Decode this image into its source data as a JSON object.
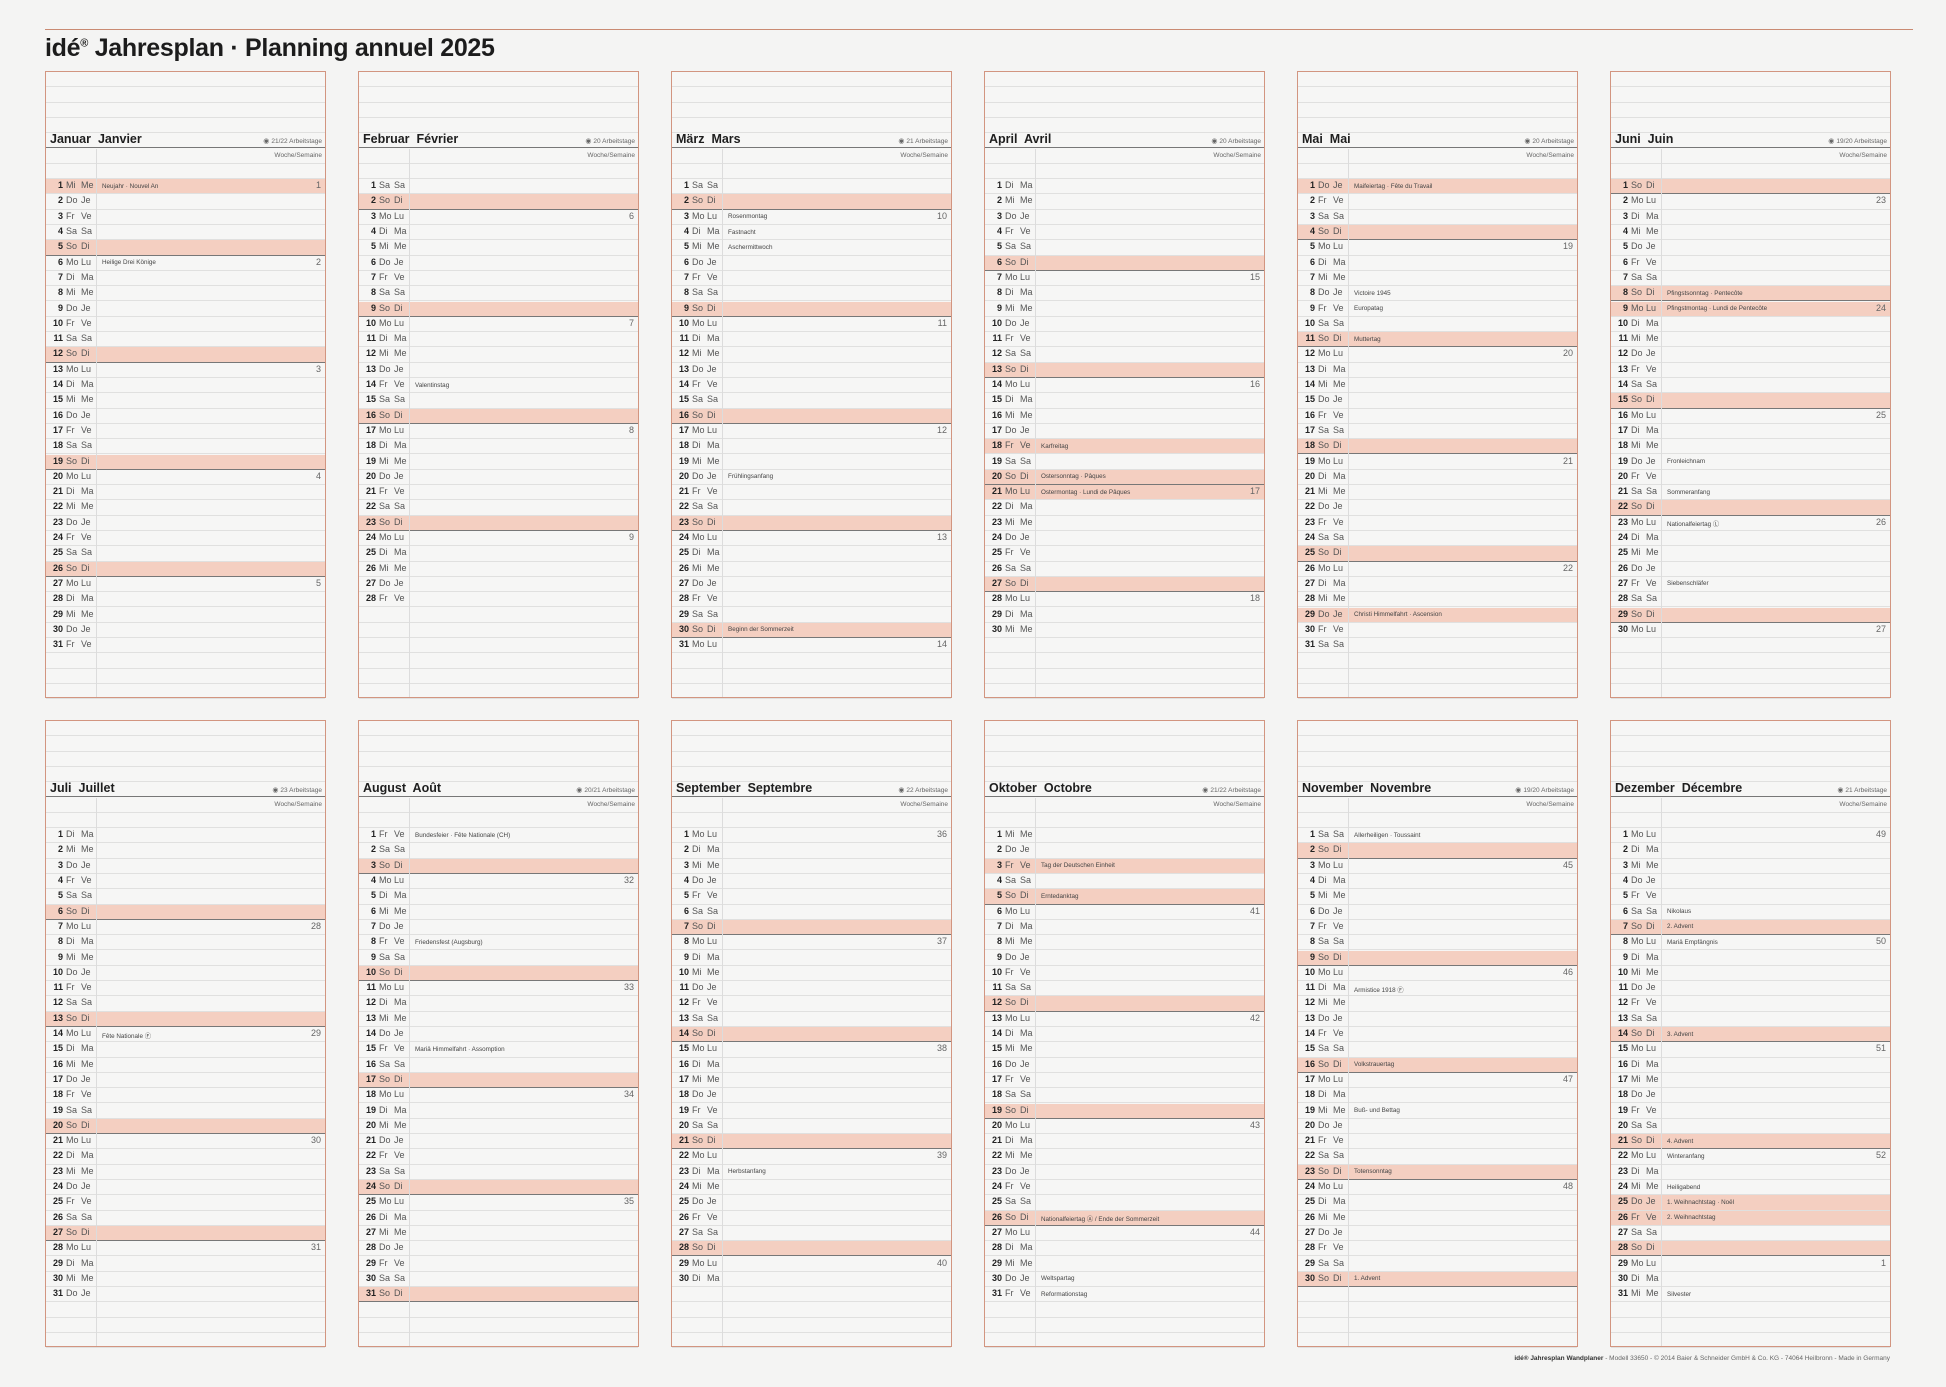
{
  "title": {
    "brand": "idé",
    "reg": "®",
    "text": " Jahresplan · Planning annuel 2025"
  },
  "week_label": "Woche/Semaine",
  "workdays_suffix": "Arbeitstage",
  "workdays_icon": "eye-icon",
  "weekdays_de": [
    "Mo",
    "Di",
    "Mi",
    "Do",
    "Fr",
    "Sa",
    "So"
  ],
  "weekdays_fr": [
    "Lu",
    "Ma",
    "Me",
    "Je",
    "Ve",
    "Sa",
    "Di"
  ],
  "colors": {
    "highlight": "#f4cfc1",
    "border": "#d29580",
    "background": "#f4f4f3"
  },
  "months": [
    {
      "de": "Januar",
      "fr": "Janvier",
      "workdays": "21/22",
      "first_weekday": 2,
      "days": 31,
      "weeks": {
        "1": 1,
        "6": 2,
        "13": 3,
        "20": 4,
        "27": 5
      },
      "events": {
        "1": "Neujahr · Nouvel An",
        "6": "Heilige Drei Könige"
      },
      "holidays": [
        1
      ]
    },
    {
      "de": "Februar",
      "fr": "Février",
      "workdays": "20",
      "first_weekday": 5,
      "days": 28,
      "weeks": {
        "3": 6,
        "10": 7,
        "17": 8,
        "24": 9
      },
      "events": {
        "14": "Valentinstag"
      },
      "holidays": []
    },
    {
      "de": "März",
      "fr": "Mars",
      "workdays": "21",
      "first_weekday": 5,
      "days": 31,
      "weeks": {
        "3": 10,
        "10": 11,
        "17": 12,
        "24": 13,
        "31": 14
      },
      "events": {
        "3": "Rosenmontag",
        "4": "Fastnacht",
        "5": "Aschermittwoch",
        "20": "Frühlingsanfang",
        "30": "Beginn der Sommerzeit"
      },
      "holidays": []
    },
    {
      "de": "April",
      "fr": "Avril",
      "workdays": "20",
      "first_weekday": 1,
      "days": 30,
      "weeks": {
        "7": 15,
        "14": 16,
        "21": 17,
        "28": 18
      },
      "events": {
        "18": "Karfreitag",
        "20": "Ostersonntag · Pâques",
        "21": "Ostermontag · Lundi de Pâques"
      },
      "holidays": [
        18,
        21
      ]
    },
    {
      "de": "Mai",
      "fr": "Mai",
      "workdays": "20",
      "first_weekday": 3,
      "days": 31,
      "weeks": {
        "5": 19,
        "12": 20,
        "19": 21,
        "26": 22
      },
      "events": {
        "1": "Maifeiertag · Fête du Travail",
        "8": "Victoire 1945",
        "9": "Europatag",
        "11": "Muttertag",
        "29": "Christi Himmelfahrt · Ascension"
      },
      "holidays": [
        1,
        29
      ]
    },
    {
      "de": "Juni",
      "fr": "Juin",
      "workdays": "19/20",
      "first_weekday": 6,
      "days": 30,
      "weeks": {
        "2": 23,
        "9": 24,
        "16": 25,
        "23": 26,
        "30": 27
      },
      "events": {
        "8": "Pfingstsonntag · Pentecôte",
        "9": "Pfingstmontag · Lundi de Pentecôte",
        "19": "Fronleichnam",
        "21": "Sommeranfang",
        "23": "Nationalfeiertag Ⓛ",
        "27": "Siebenschläfer"
      },
      "holidays": [
        9
      ]
    },
    {
      "de": "Juli",
      "fr": "Juillet",
      "workdays": "23",
      "first_weekday": 1,
      "days": 31,
      "weeks": {
        "7": 28,
        "14": 29,
        "21": 30,
        "28": 31
      },
      "events": {
        "14": "Fête Nationale Ⓕ"
      },
      "holidays": []
    },
    {
      "de": "August",
      "fr": "Août",
      "workdays": "20/21",
      "first_weekday": 4,
      "days": 31,
      "weeks": {
        "4": 32,
        "11": 33,
        "18": 34,
        "25": 35
      },
      "events": {
        "1": "Bundesfeier · Fête Nationale (CH)",
        "8": "Friedensfest (Augsburg)",
        "15": "Mariä Himmelfahrt · Assomption"
      },
      "holidays": []
    },
    {
      "de": "September",
      "fr": "Septembre",
      "workdays": "22",
      "first_weekday": 0,
      "days": 30,
      "weeks": {
        "1": 36,
        "8": 37,
        "15": 38,
        "22": 39,
        "29": 40
      },
      "events": {
        "23": "Herbstanfang"
      },
      "holidays": []
    },
    {
      "de": "Oktober",
      "fr": "Octobre",
      "workdays": "21/22",
      "first_weekday": 2,
      "days": 31,
      "weeks": {
        "6": 41,
        "13": 42,
        "20": 43,
        "27": 44
      },
      "events": {
        "3": "Tag der Deutschen Einheit",
        "5": "Erntedanktag",
        "26": "Nationalfeiertag Ⓐ / Ende der Sommerzeit",
        "30": "Weltspartag",
        "31": "Reformationstag"
      },
      "holidays": [
        3
      ]
    },
    {
      "de": "November",
      "fr": "Novembre",
      "workdays": "19/20",
      "first_weekday": 5,
      "days": 30,
      "weeks": {
        "3": 45,
        "10": 46,
        "17": 47,
        "24": 48
      },
      "events": {
        "1": "Allerheiligen · Toussaint",
        "11": "Armistice 1918 Ⓕ",
        "16": "Volkstrauertag",
        "19": "Buß- und Bettag",
        "23": "Totensonntag",
        "30": "1. Advent"
      },
      "holidays": []
    },
    {
      "de": "Dezember",
      "fr": "Décembre",
      "workdays": "21",
      "first_weekday": 0,
      "days": 31,
      "weeks": {
        "1": 49,
        "8": 50,
        "15": 51,
        "22": 52,
        "29": 1
      },
      "events": {
        "6": "Nikolaus",
        "7": "2. Advent",
        "8": "Mariä Empfängnis",
        "14": "3. Advent",
        "21": "4. Advent",
        "22": "Winteranfang",
        "24": "Heiligabend",
        "25": "1. Weihnachtstag · Noël",
        "26": "2. Weihnachtstag",
        "31": "Silvester"
      },
      "holidays": [
        25,
        26
      ]
    }
  ],
  "footer": {
    "bold": "idé® Jahresplan Wandplaner",
    "rest": " - Modell 33650 - © 2014 Baier & Schneider GmbH & Co. KG - 74064 Heilbronn - Made in Germany"
  }
}
